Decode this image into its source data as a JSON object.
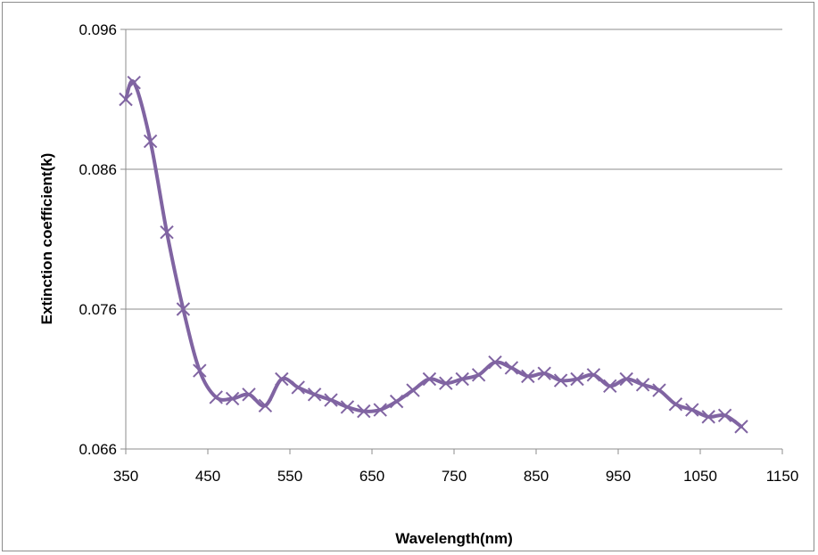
{
  "chart_data": {
    "type": "line",
    "title": "",
    "xlabel": "Wavelength(nm)",
    "ylabel": "Extinction coefficient(k)",
    "xlim": [
      350,
      1150
    ],
    "ylim": [
      0.066,
      0.096
    ],
    "xticks": [
      "350",
      "450",
      "550",
      "650",
      "750",
      "850",
      "950",
      "1050",
      "1150"
    ],
    "yticks": [
      "0.066",
      "0.076",
      "0.086",
      "0.096"
    ],
    "grid": "horizontal",
    "legend": "none",
    "marker": "x",
    "color": "#8064a2",
    "series": [
      {
        "x": [
          350,
          360,
          380,
          400,
          420,
          440,
          460,
          480,
          500,
          520,
          540,
          560,
          580,
          600,
          620,
          640,
          660,
          680,
          700,
          720,
          740,
          760,
          780,
          800,
          820,
          840,
          860,
          880,
          900,
          920,
          940,
          960,
          980,
          1000,
          1020,
          1040,
          1060,
          1080,
          1100
        ],
        "y": [
          0.091,
          0.0922,
          0.088,
          0.0815,
          0.076,
          0.0716,
          0.0697,
          0.0696,
          0.0699,
          0.0691,
          0.071,
          0.0704,
          0.0699,
          0.0695,
          0.069,
          0.0687,
          0.0688,
          0.0694,
          0.0702,
          0.071,
          0.0707,
          0.071,
          0.0713,
          0.0722,
          0.0718,
          0.0712,
          0.0714,
          0.0709,
          0.071,
          0.0713,
          0.0705,
          0.071,
          0.0706,
          0.0702,
          0.0692,
          0.0688,
          0.0683,
          0.0684,
          0.0676
        ]
      }
    ]
  }
}
